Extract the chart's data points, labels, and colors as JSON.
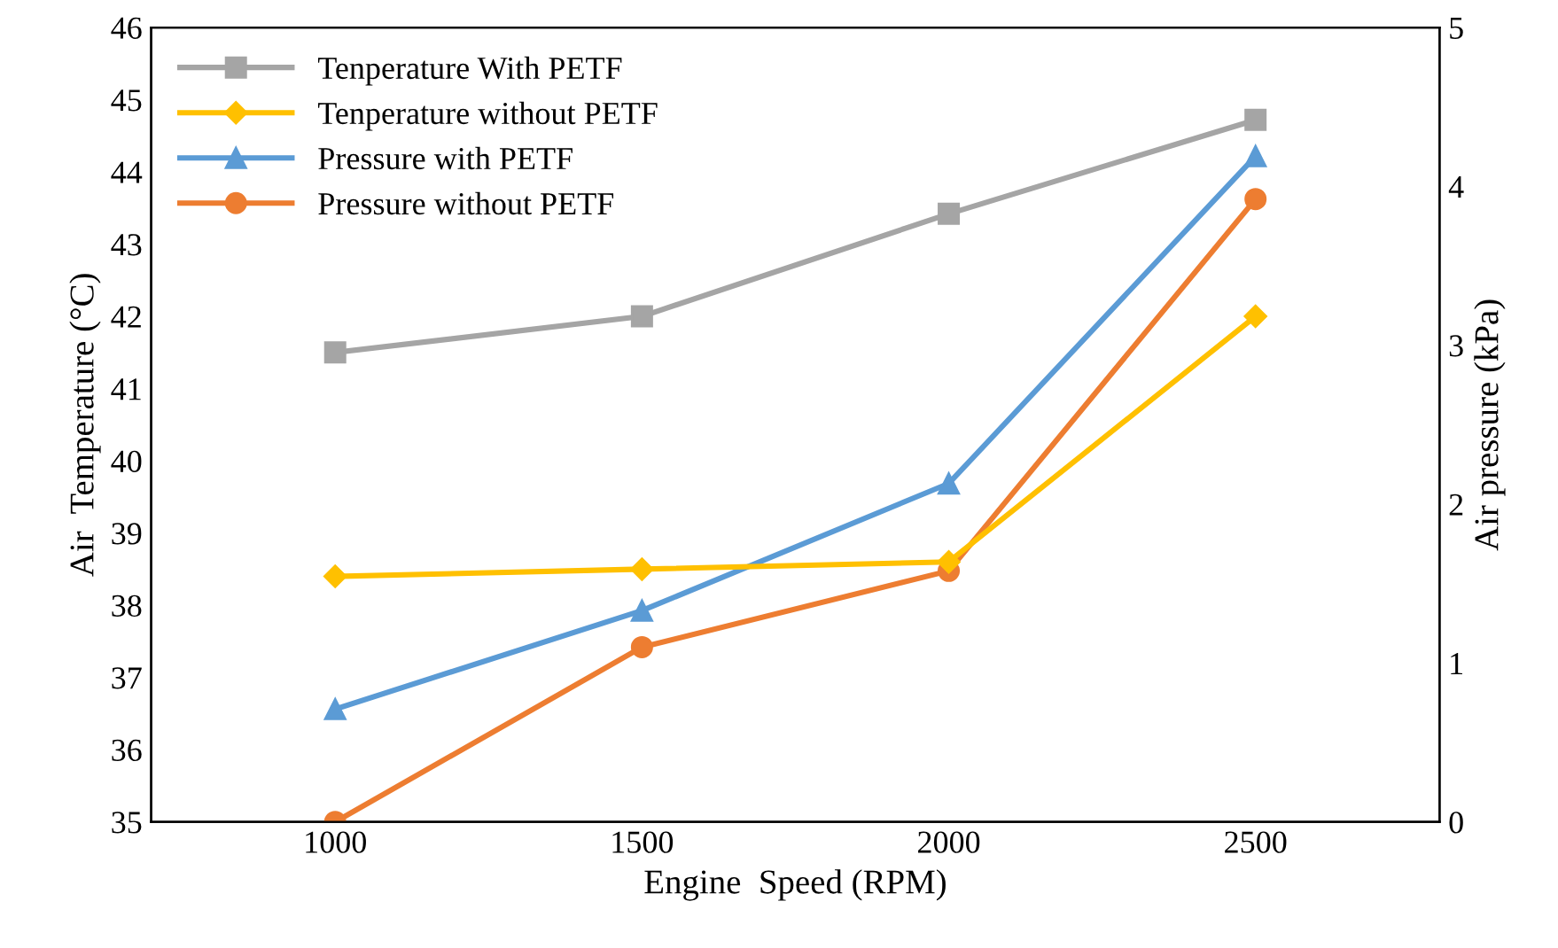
{
  "chart_data": {
    "type": "line",
    "xlabel": "Engine  Speed (RPM)",
    "ylabel": "Air  Temperature (°C)",
    "y2label": "Air pressure (kPa)",
    "categories": [
      "1000",
      "1500",
      "2000",
      "2500"
    ],
    "ylim": [
      35,
      46
    ],
    "yticks": [
      35,
      36,
      37,
      38,
      39,
      40,
      41,
      42,
      43,
      44,
      45,
      46
    ],
    "y2lim": [
      0,
      5
    ],
    "y2ticks": [
      0,
      1,
      2,
      3,
      4,
      5
    ],
    "grid": false,
    "legend": "top left",
    "line_style": "solid",
    "series": [
      {
        "name": "Tenperature With PETF",
        "color": "#a5a5a5",
        "marker": "square",
        "values": [
          41.5,
          42.0,
          43.42,
          44.72
        ]
      },
      {
        "name": "Tenperature without PETF",
        "color": "#ffc000",
        "marker": "diamond",
        "values": [
          38.4,
          38.5,
          38.6,
          42.0
        ]
      },
      {
        "name": "Pressure with PETF",
        "color": "#5b9bd5",
        "marker": "triangle",
        "axis": "y2",
        "values": [
          0.71,
          1.33,
          2.13,
          4.19
        ]
      },
      {
        "name": "Pressure without PETF",
        "color": "#ed7d31",
        "marker": "circle",
        "axis": "y2",
        "values": [
          0.0,
          1.1,
          1.58,
          3.92
        ]
      }
    ]
  }
}
